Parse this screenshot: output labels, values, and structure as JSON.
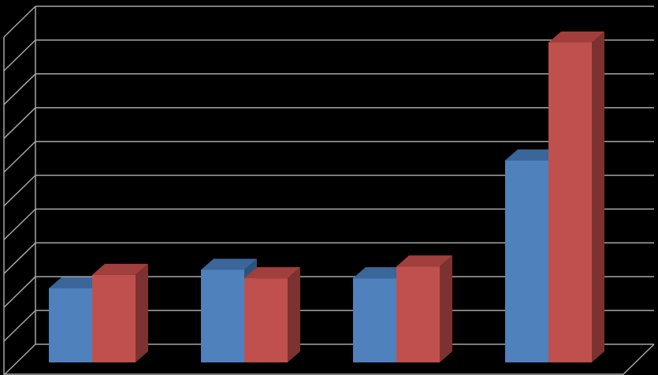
{
  "chart_data": {
    "type": "bar",
    "categories": [
      "",
      "",
      "",
      ""
    ],
    "series": [
      {
        "values": [
          2.2,
          2.75,
          2.5,
          6.0
        ]
      },
      {
        "values": [
          2.6,
          2.5,
          2.85,
          9.5
        ]
      }
    ],
    "ylim": [
      0,
      10
    ],
    "y_gridlines": 10,
    "grid": true,
    "three_d": true,
    "legend": "none",
    "colors": {
      "series": [
        "#4F81BD",
        "#C0504D"
      ],
      "series_top": [
        "#3A6699",
        "#A13F3C"
      ],
      "series_side": [
        "#2E527C",
        "#7B3230"
      ],
      "grid": "#A6A6A6",
      "background": "#000000"
    }
  }
}
